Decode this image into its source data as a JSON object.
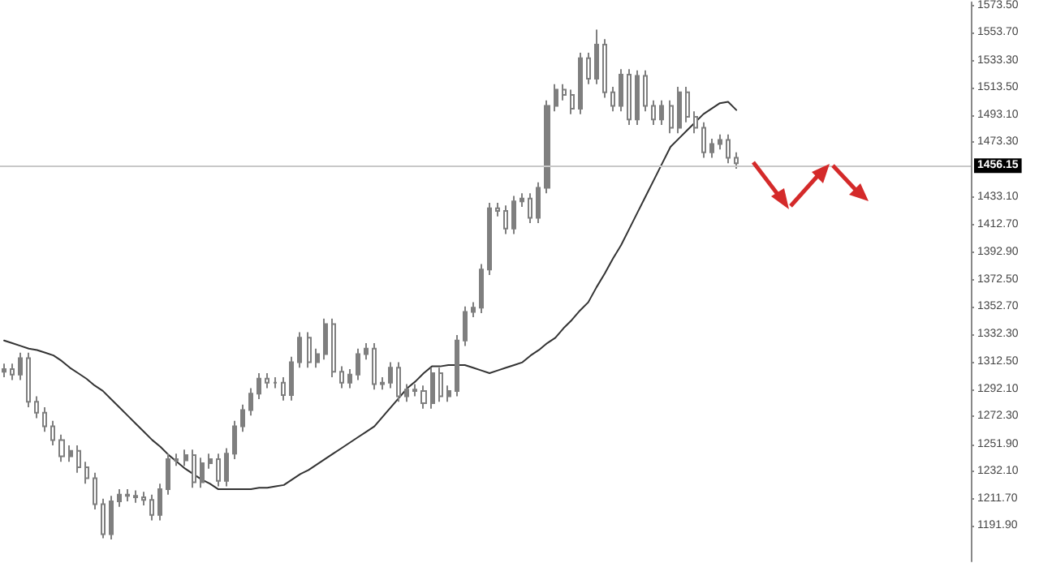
{
  "chart_data": {
    "type": "candlestick",
    "categories": [
      null,
      null,
      null,
      null,
      null,
      null,
      null,
      null,
      null,
      null,
      null,
      null,
      null,
      null,
      null,
      null,
      null,
      null,
      null,
      null,
      null,
      null,
      null,
      null,
      null,
      null,
      null,
      null,
      null,
      null,
      null,
      null,
      null,
      null,
      null,
      null,
      null,
      null,
      null,
      null,
      null,
      null,
      null,
      null,
      null,
      null,
      null,
      null,
      null,
      null,
      null,
      null,
      null,
      null,
      null,
      null,
      null,
      null,
      null,
      null,
      null,
      null,
      null,
      null,
      null,
      null,
      null,
      null,
      null,
      null,
      null,
      null,
      null,
      null,
      null,
      null,
      null,
      null,
      null,
      null,
      null,
      null,
      null,
      null,
      null,
      null,
      null,
      null,
      null,
      null,
      null,
      null,
      null,
      null,
      null,
      null,
      null,
      null,
      null,
      null,
      null,
      null,
      null,
      null,
      null,
      null,
      null,
      null,
      null,
      null,
      null,
      null,
      null,
      null,
      null,
      null,
      null,
      null
    ],
    "series": [
      {
        "color": "#7f7f7f",
        "ohlc": [
          [
            1305,
            1311,
            1301,
            1307
          ],
          [
            1307,
            1311,
            1299,
            1303
          ],
          [
            1303,
            1319,
            1299,
            1315
          ],
          [
            1315,
            1319,
            1279,
            1283
          ],
          [
            1283,
            1287,
            1271,
            1275
          ],
          [
            1275,
            1279,
            1261,
            1265
          ],
          [
            1265,
            1269,
            1251,
            1255
          ],
          [
            1255,
            1259,
            1239,
            1243
          ],
          [
            1243,
            1251,
            1239,
            1247
          ],
          [
            1247,
            1251,
            1231,
            1235
          ],
          [
            1235,
            1239,
            1223,
            1227
          ],
          [
            1227,
            1231,
            1204,
            1208
          ],
          [
            1208,
            1212,
            1183,
            1186
          ],
          [
            1186,
            1214,
            1182,
            1210
          ],
          [
            1210,
            1219,
            1206,
            1215
          ],
          [
            1215,
            1219,
            1210,
            1214
          ],
          [
            1214,
            1218,
            1209,
            1213
          ],
          [
            1213,
            1217,
            1207,
            1211
          ],
          [
            1211,
            1215,
            1196,
            1200
          ],
          [
            1200,
            1223,
            1196,
            1219
          ],
          [
            1219,
            1245,
            1215,
            1241
          ],
          [
            1241,
            1245,
            1236,
            1240
          ],
          [
            1240,
            1248,
            1236,
            1244
          ],
          [
            1244,
            1248,
            1220,
            1224
          ],
          [
            1224,
            1242,
            1220,
            1238
          ],
          [
            1238,
            1245,
            1234,
            1241
          ],
          [
            1241,
            1245,
            1221,
            1225
          ],
          [
            1225,
            1249,
            1221,
            1245
          ],
          [
            1245,
            1269,
            1241,
            1265
          ],
          [
            1265,
            1281,
            1261,
            1277
          ],
          [
            1277,
            1293,
            1273,
            1289
          ],
          [
            1289,
            1304,
            1285,
            1300
          ],
          [
            1300,
            1304,
            1293,
            1297
          ],
          [
            1297,
            1301,
            1293,
            1297
          ],
          [
            1297,
            1301,
            1284,
            1288
          ],
          [
            1288,
            1316,
            1284,
            1312
          ],
          [
            1312,
            1334,
            1308,
            1330
          ],
          [
            1330,
            1334,
            1308,
            1312
          ],
          [
            1312,
            1322,
            1308,
            1318
          ],
          [
            1318,
            1344,
            1314,
            1340
          ],
          [
            1340,
            1344,
            1301,
            1305
          ],
          [
            1305,
            1309,
            1293,
            1297
          ],
          [
            1297,
            1307,
            1293,
            1303
          ],
          [
            1303,
            1322,
            1299,
            1318
          ],
          [
            1318,
            1326,
            1314,
            1322
          ],
          [
            1322,
            1326,
            1292,
            1296
          ],
          [
            1296,
            1301,
            1292,
            1297
          ],
          [
            1297,
            1312,
            1293,
            1308
          ],
          [
            1308,
            1312,
            1283,
            1287
          ],
          [
            1287,
            1296,
            1283,
            1292
          ],
          [
            1292,
            1296,
            1287,
            1291
          ],
          [
            1291,
            1295,
            1278,
            1282
          ],
          [
            1282,
            1308,
            1278,
            1304
          ],
          [
            1304,
            1308,
            1283,
            1287
          ],
          [
            1287,
            1295,
            1283,
            1291
          ],
          [
            1291,
            1332,
            1287,
            1328
          ],
          [
            1328,
            1353,
            1324,
            1349
          ],
          [
            1349,
            1356,
            1345,
            1352
          ],
          [
            1352,
            1384,
            1348,
            1380
          ],
          [
            1380,
            1429,
            1376,
            1425
          ],
          [
            1425,
            1429,
            1419,
            1423
          ],
          [
            1423,
            1427,
            1406,
            1410
          ],
          [
            1410,
            1434,
            1406,
            1430
          ],
          [
            1430,
            1436,
            1426,
            1432
          ],
          [
            1432,
            1436,
            1414,
            1418
          ],
          [
            1418,
            1444,
            1414,
            1440
          ],
          [
            1440,
            1504,
            1436,
            1500
          ],
          [
            1500,
            1516,
            1496,
            1512
          ],
          [
            1512,
            1516,
            1504,
            1508
          ],
          [
            1508,
            1512,
            1494,
            1498
          ],
          [
            1498,
            1539,
            1494,
            1535
          ],
          [
            1535,
            1539,
            1516,
            1520
          ],
          [
            1520,
            1556,
            1516,
            1545
          ],
          [
            1545,
            1549,
            1506,
            1510
          ],
          [
            1510,
            1514,
            1496,
            1500
          ],
          [
            1500,
            1527,
            1496,
            1523
          ],
          [
            1523,
            1527,
            1486,
            1490
          ],
          [
            1490,
            1526,
            1486,
            1522
          ],
          [
            1522,
            1526,
            1496,
            1500
          ],
          [
            1500,
            1504,
            1486,
            1490
          ],
          [
            1490,
            1504,
            1486,
            1500
          ],
          [
            1500,
            1504,
            1480,
            1484
          ],
          [
            1484,
            1514,
            1480,
            1510
          ],
          [
            1510,
            1514,
            1488,
            1492
          ],
          [
            1492,
            1496,
            1480,
            1484
          ],
          [
            1484,
            1488,
            1462,
            1466
          ],
          [
            1466,
            1476,
            1462,
            1472
          ],
          [
            1472,
            1479,
            1468,
            1475
          ],
          [
            1475,
            1479,
            1458,
            1462
          ],
          [
            1462,
            1466,
            1454,
            1458
          ],
          null,
          null,
          null,
          null,
          null,
          null,
          null,
          null,
          null,
          null,
          null,
          null,
          null,
          null,
          null,
          null,
          null,
          null,
          null,
          null,
          null,
          null,
          null,
          null,
          null,
          null,
          null,
          null
        ]
      },
      {
        "type": "line",
        "color": "#333333",
        "values": [
          1328,
          1326,
          1324,
          1322,
          1321,
          1319,
          1317,
          1313,
          1308,
          1304,
          1300,
          1295,
          1291,
          1285,
          1279,
          1273,
          1267,
          1261,
          1255,
          1250,
          1244,
          1239,
          1234,
          1230,
          1226,
          1223,
          1219,
          1219,
          1219,
          1219,
          1219,
          1220,
          1220,
          1221,
          1222,
          1226,
          1230,
          1233,
          1237,
          1241,
          1245,
          1249,
          1253,
          1257,
          1261,
          1265,
          1272,
          1279,
          1286,
          1293,
          1298,
          1304,
          1309,
          1309,
          1310,
          1310,
          1310,
          1308,
          1306,
          1304,
          1306,
          1308,
          1310,
          1312,
          1317,
          1321,
          1326,
          1330,
          1337,
          1343,
          1350,
          1356,
          1367,
          1377,
          1388,
          1398,
          1410,
          1422,
          1434,
          1446,
          1458,
          1470,
          1476,
          1482,
          1488,
          1494,
          1498,
          1502,
          1503,
          1497,
          null,
          null,
          null,
          null,
          null,
          null,
          null,
          null,
          null,
          null,
          null,
          null,
          null,
          null,
          null,
          null,
          null,
          null,
          null,
          null,
          null,
          null,
          null,
          null,
          null,
          null,
          null,
          null
        ]
      }
    ],
    "ylim": [
      1166,
      1576
    ],
    "yticks": [
      {
        "value": 1573.5,
        "label": "1573.50"
      },
      {
        "value": 1553.7,
        "label": "1553.70"
      },
      {
        "value": 1533.3,
        "label": "1533.30"
      },
      {
        "value": 1513.5,
        "label": "1513.50"
      },
      {
        "value": 1493.1,
        "label": "1493.10"
      },
      {
        "value": 1473.3,
        "label": "1473.30"
      },
      {
        "value": 1433.1,
        "label": "1433.10"
      },
      {
        "value": 1412.7,
        "label": "1412.70"
      },
      {
        "value": 1392.9,
        "label": "1392.90"
      },
      {
        "value": 1372.5,
        "label": "1372.50"
      },
      {
        "value": 1352.7,
        "label": "1352.70"
      },
      {
        "value": 1332.3,
        "label": "1332.30"
      },
      {
        "value": 1312.5,
        "label": "1312.50"
      },
      {
        "value": 1292.1,
        "label": "1292.10"
      },
      {
        "value": 1272.3,
        "label": "1272.30"
      },
      {
        "value": 1251.9,
        "label": "1251.90"
      },
      {
        "value": 1232.1,
        "label": "1232.10"
      },
      {
        "value": 1211.7,
        "label": "1211.70"
      },
      {
        "value": 1191.9,
        "label": "1191.90"
      }
    ],
    "ref_lines": [
      {
        "axis": "y",
        "value": 1456.15,
        "label": "1456.15",
        "color": "#c8c8c8"
      }
    ],
    "tick_labels": "y",
    "grid": false,
    "line_style": "solid"
  }
}
